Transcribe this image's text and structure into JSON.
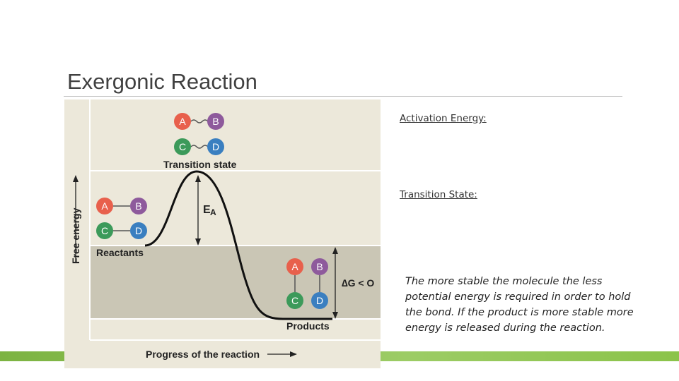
{
  "slide": {
    "title": "Exergonic Reaction",
    "diagram": {
      "transition_atoms": [
        "A",
        "B",
        "C",
        "D"
      ],
      "transition_label": "Transition state",
      "reactant_atoms": [
        "A",
        "B",
        "C",
        "D"
      ],
      "reactants_label": "Reactants",
      "product_atoms": [
        "A",
        "B",
        "C",
        "D"
      ],
      "products_label": "Products",
      "ea_label": "E",
      "ea_subscript": "A",
      "delta_g_label": "∆G < O",
      "y_axis_label": "Free energy",
      "x_axis_label": "Progress of the reaction"
    },
    "notes": {
      "activation_energy": "Activation Energy:",
      "transition_state": "Transition State:",
      "paragraph": "The more stable the molecule the less potential energy is required in order to hold the bond. If the product is more stable more energy is released during the reaction."
    }
  }
}
